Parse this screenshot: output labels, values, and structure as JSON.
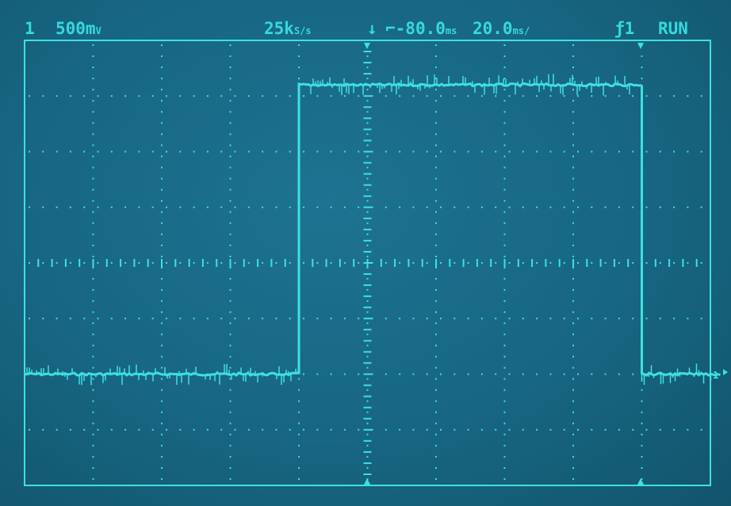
{
  "header": {
    "channel_number": "1",
    "volts_per_div": "500m",
    "volts_unit": "V",
    "sample_rate": "25k",
    "sample_unit": "S/s",
    "trigger_offset": "-80.0",
    "trigger_offset_unit": "ms",
    "time_per_div": "20.0",
    "time_per_div_unit": "ms/",
    "trigger_source": "1",
    "run_state": "RUN"
  },
  "colors": {
    "trace": "#3fe0df",
    "grid": "#3fe0df",
    "background": "#176682",
    "text": "#35d9dc"
  },
  "icons": {
    "trigger_level": "trigger-arrow-icon",
    "trigger_marker": "trigger-position-marker-icon",
    "ground_marker": "channel-ground-marker-icon"
  },
  "waveform": {
    "type": "square-pulse",
    "low_level_div": -2,
    "high_level_div": 3.2,
    "rise_time_div": -1,
    "fall_time_div": 4,
    "noise": true
  }
}
